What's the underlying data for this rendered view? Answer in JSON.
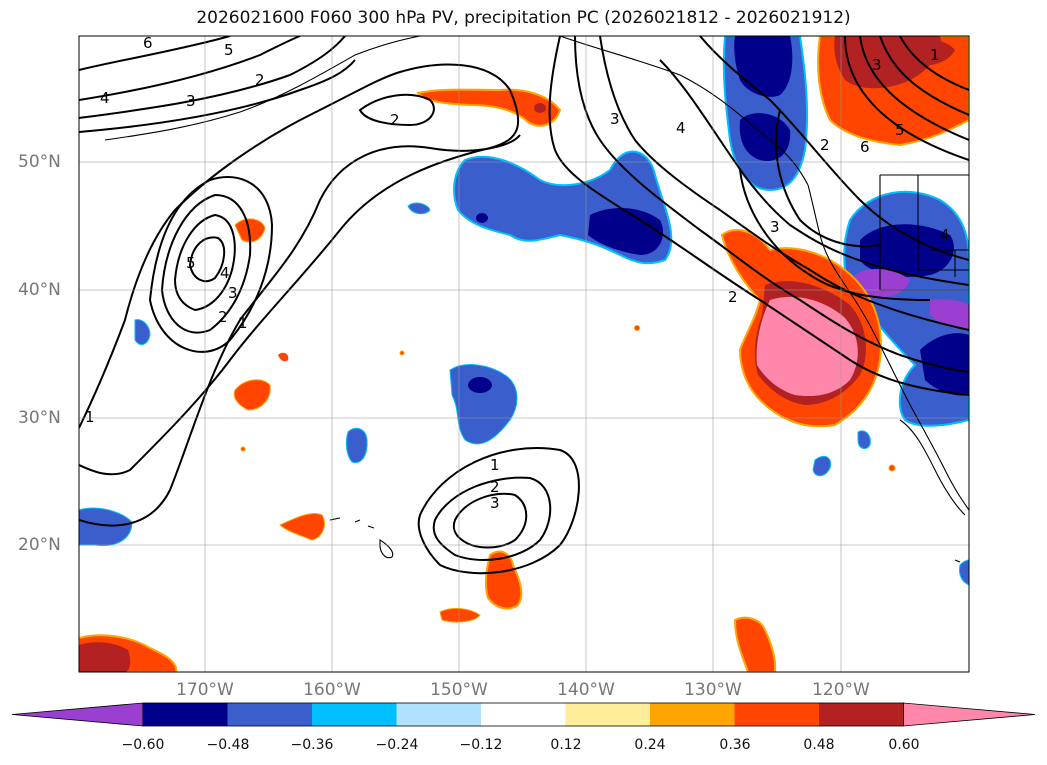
{
  "title": "2026021600 F060 300 hPa PV, precipitation PC (2026021812 - 2026021912)",
  "lat_labels": [
    "50°N",
    "40°N",
    "30°N",
    "20°N"
  ],
  "lon_labels": [
    "170°W",
    "160°W",
    "150°W",
    "140°W",
    "130°W",
    "120°W"
  ],
  "colorbar": {
    "ticks": [
      "−0.60",
      "−0.48",
      "−0.36",
      "−0.24",
      "−0.12",
      "0.12",
      "0.24",
      "0.36",
      "0.48",
      "0.60"
    ],
    "colors": [
      "#9b3fd1",
      "#00008b",
      "#3a5fcd",
      "#00bfff",
      "#b0e2ff",
      "#ffffff",
      "#ffee99",
      "#ffa500",
      "#ff4500",
      "#b22222",
      "#ff88aa"
    ]
  },
  "contour_labels": [
    "6",
    "5",
    "4",
    "3",
    "2",
    "2",
    "5",
    "4",
    "3",
    "2",
    "1",
    "1",
    "3",
    "4",
    "2",
    "3",
    "2",
    "1",
    "2",
    "3",
    "6",
    "5",
    "3",
    "4",
    "1"
  ]
}
